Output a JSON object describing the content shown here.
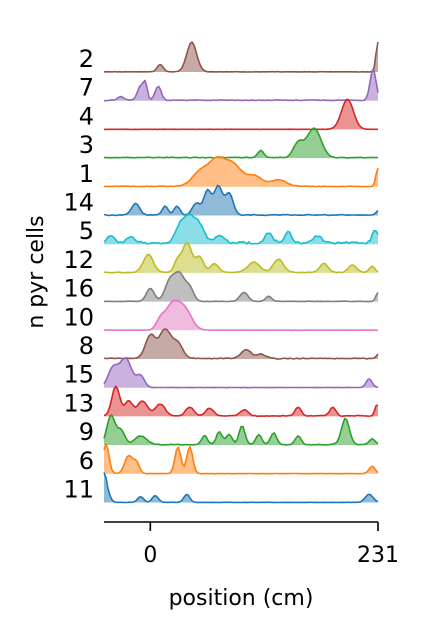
{
  "chart_data": {
    "type": "area",
    "title": "",
    "xlabel": "position (cm)",
    "ylabel": "n pyr cells",
    "xlim": [
      -47,
      231
    ],
    "x_ticks": [
      {
        "value": 0,
        "label": "0"
      },
      {
        "value": 231,
        "label": "231"
      }
    ],
    "grid": false,
    "legend": "none",
    "series": [
      {
        "label": "2",
        "color": "#8c564b",
        "baseline_noise": 0.02,
        "peaks": [
          [
            42,
            1.0,
            5
          ],
          [
            10,
            0.25,
            3
          ],
          [
            231,
            1.0,
            2
          ]
        ]
      },
      {
        "label": "7",
        "color": "#9467bd",
        "baseline_noise": 0.05,
        "peaks": [
          [
            -10,
            0.45,
            3
          ],
          [
            -5,
            0.5,
            2
          ],
          [
            8,
            0.45,
            3
          ],
          [
            -30,
            0.12,
            3
          ],
          [
            226,
            1.0,
            3
          ]
        ]
      },
      {
        "label": "4",
        "color": "#d62728",
        "baseline_noise": 0.01,
        "peaks": [
          [
            200,
            1.0,
            6
          ]
        ]
      },
      {
        "label": "3",
        "color": "#2ca02c",
        "baseline_noise": 0.06,
        "peaks": [
          [
            166,
            1.0,
            7
          ],
          [
            112,
            0.25,
            3
          ],
          [
            150,
            0.5,
            5
          ]
        ]
      },
      {
        "label": "1",
        "color": "#ff7f0e",
        "baseline_noise": 0.05,
        "peaks": [
          [
            68,
            1.0,
            9
          ],
          [
            85,
            0.7,
            8
          ],
          [
            50,
            0.5,
            8
          ],
          [
            105,
            0.4,
            8
          ],
          [
            130,
            0.25,
            8
          ],
          [
            231,
            0.7,
            2
          ]
        ]
      },
      {
        "label": "14",
        "color": "#1f77b4",
        "baseline_noise": 0.06,
        "peaks": [
          [
            -15,
            0.4,
            4
          ],
          [
            15,
            0.3,
            3
          ],
          [
            27,
            0.3,
            3
          ],
          [
            58,
            0.85,
            4
          ],
          [
            69,
            1.0,
            4
          ],
          [
            80,
            0.75,
            4
          ],
          [
            48,
            0.3,
            3
          ],
          [
            44,
            0.2,
            3
          ],
          [
            231,
            0.15,
            2
          ]
        ]
      },
      {
        "label": "5",
        "color": "#17becf",
        "baseline_noise": 0.18,
        "peaks": [
          [
            -40,
            0.3,
            4
          ],
          [
            -20,
            0.25,
            4
          ],
          [
            30,
            0.6,
            5
          ],
          [
            40,
            1.0,
            6
          ],
          [
            50,
            0.6,
            5
          ],
          [
            70,
            0.3,
            5
          ],
          [
            120,
            0.4,
            4
          ],
          [
            140,
            0.5,
            3
          ],
          [
            170,
            0.3,
            4
          ],
          [
            228,
            0.5,
            3
          ]
        ]
      },
      {
        "label": "12",
        "color": "#bcbd22",
        "baseline_noise": 0.06,
        "peaks": [
          [
            -2,
            0.6,
            5
          ],
          [
            27,
            0.35,
            3
          ],
          [
            37,
            1.0,
            5
          ],
          [
            50,
            0.5,
            4
          ],
          [
            65,
            0.3,
            4
          ],
          [
            105,
            0.35,
            6
          ],
          [
            130,
            0.45,
            5
          ],
          [
            176,
            0.3,
            4
          ],
          [
            205,
            0.25,
            4
          ],
          [
            225,
            0.2,
            3
          ]
        ]
      },
      {
        "label": "16",
        "color": "#7f7f7f",
        "baseline_noise": 0.03,
        "peaks": [
          [
            0,
            0.5,
            4
          ],
          [
            20,
            0.8,
            5
          ],
          [
            30,
            1.0,
            5
          ],
          [
            40,
            0.5,
            4
          ],
          [
            95,
            0.35,
            4
          ],
          [
            120,
            0.2,
            3
          ],
          [
            231,
            0.35,
            2
          ]
        ]
      },
      {
        "label": "10",
        "color": "#e377c2",
        "baseline_noise": 0.02,
        "peaks": [
          [
            22,
            1.0,
            7
          ],
          [
            35,
            0.8,
            7
          ],
          [
            10,
            0.35,
            4
          ]
        ]
      },
      {
        "label": "8",
        "color": "#8c564b",
        "baseline_noise": 0.06,
        "peaks": [
          [
            0,
            0.8,
            5
          ],
          [
            15,
            1.0,
            6
          ],
          [
            28,
            0.5,
            5
          ],
          [
            97,
            0.3,
            5
          ],
          [
            112,
            0.15,
            5
          ],
          [
            231,
            0.15,
            2
          ]
        ]
      },
      {
        "label": "15",
        "color": "#9467bd",
        "baseline_noise": 0.02,
        "peaks": [
          [
            -25,
            1.0,
            6
          ],
          [
            -38,
            0.65,
            5
          ],
          [
            -10,
            0.4,
            4
          ],
          [
            222,
            0.3,
            3
          ]
        ]
      },
      {
        "label": "13",
        "color": "#d62728",
        "baseline_noise": 0.06,
        "peaks": [
          [
            -35,
            1.0,
            4
          ],
          [
            -22,
            0.5,
            4
          ],
          [
            -8,
            0.5,
            5
          ],
          [
            10,
            0.4,
            5
          ],
          [
            40,
            0.3,
            4
          ],
          [
            60,
            0.25,
            4
          ],
          [
            95,
            0.2,
            4
          ],
          [
            150,
            0.3,
            3
          ],
          [
            185,
            0.3,
            3
          ],
          [
            230,
            0.4,
            2
          ]
        ]
      },
      {
        "label": "9",
        "color": "#2ca02c",
        "baseline_noise": 0.06,
        "peaks": [
          [
            -40,
            1.0,
            4
          ],
          [
            -30,
            0.5,
            4
          ],
          [
            -10,
            0.3,
            6
          ],
          [
            55,
            0.3,
            3
          ],
          [
            70,
            0.45,
            3
          ],
          [
            80,
            0.35,
            3
          ],
          [
            93,
            0.65,
            3
          ],
          [
            110,
            0.35,
            3
          ],
          [
            125,
            0.4,
            3
          ],
          [
            150,
            0.3,
            3
          ],
          [
            198,
            0.9,
            4
          ],
          [
            225,
            0.2,
            3
          ]
        ]
      },
      {
        "label": "6",
        "color": "#ff7f0e",
        "baseline_noise": 0.02,
        "peaks": [
          [
            -45,
            1.0,
            3
          ],
          [
            -22,
            0.6,
            4
          ],
          [
            -14,
            0.35,
            3
          ],
          [
            28,
            0.9,
            3
          ],
          [
            40,
            0.9,
            3
          ],
          [
            225,
            0.25,
            3
          ]
        ]
      },
      {
        "label": "11",
        "color": "#1f77b4",
        "baseline_noise": 0.02,
        "peaks": [
          [
            -47,
            1.0,
            2
          ],
          [
            -44,
            0.5,
            3
          ],
          [
            -10,
            0.25,
            3
          ],
          [
            5,
            0.3,
            3
          ],
          [
            37,
            0.35,
            3
          ],
          [
            222,
            0.35,
            4
          ]
        ]
      }
    ]
  }
}
